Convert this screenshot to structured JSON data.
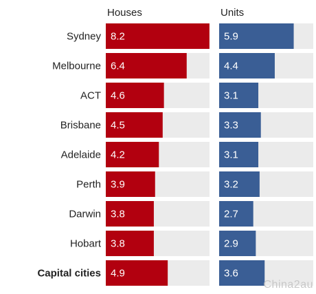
{
  "chart_data": {
    "type": "bar",
    "categories": [
      "Sydney",
      "Melbourne",
      "ACT",
      "Brisbane",
      "Adelaide",
      "Perth",
      "Darwin",
      "Hobart",
      "Capital cities"
    ],
    "series": [
      {
        "name": "Houses",
        "values": [
          8.2,
          6.4,
          4.6,
          4.5,
          4.2,
          3.9,
          3.8,
          3.8,
          4.9
        ],
        "color": "#b2000f"
      },
      {
        "name": "Units",
        "values": [
          5.9,
          4.4,
          3.1,
          3.3,
          3.1,
          3.2,
          2.7,
          2.9,
          3.6
        ],
        "color": "#3a5e95"
      }
    ],
    "value_labels": {
      "Houses": [
        "8.2",
        "6.4",
        "4.6",
        "4.5",
        "4.2",
        "3.9",
        "3.8",
        "3.8",
        "4.9"
      ],
      "Units": [
        "5.9",
        "4.4",
        "3.1",
        "3.3",
        "3.1",
        "3.2",
        "2.7",
        "2.9",
        "3.6"
      ]
    },
    "bold_categories": [
      "Capital cities"
    ],
    "orientation": "horizontal",
    "track_color": "#ebebeb",
    "xlim": [
      0,
      10
    ],
    "grid": false
  },
  "watermark": "Chinа2au"
}
